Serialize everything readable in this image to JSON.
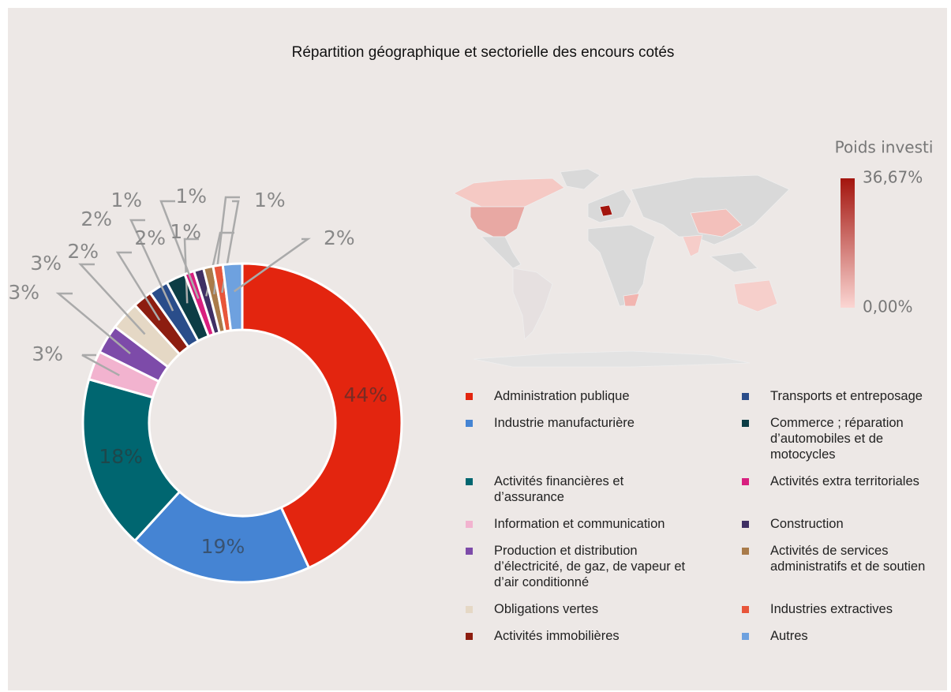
{
  "chart_data": {
    "type": "donut",
    "title": "Répartition géographique et sectorielle des encours cotés",
    "categories": [
      "Administration publique",
      "Industrie manufacturière",
      "Activités financières et d’assurance",
      "Information et communication",
      "Production et distribution d’électricité, de gaz, de vapeur et d’air conditionné",
      "Obligations vertes",
      "Activités immobilières",
      "Transports et entreposage",
      "Commerce ; réparation d’automobiles et de motocycles",
      "Activités extra territoriales",
      "Construction",
      "Activités de services administratifs et de soutien",
      "Industries extractives",
      "Autres"
    ],
    "values": [
      44,
      19,
      18,
      3,
      3,
      3,
      2,
      2,
      2,
      1,
      1,
      1,
      1,
      2
    ],
    "value_labels": [
      "44%",
      "19%",
      "18%",
      "3%",
      "3%",
      "3%",
      "2%",
      "2%",
      "2%",
      "1%",
      "1%",
      "1%",
      "1%",
      "2%"
    ],
    "colors": [
      "#e3250f",
      "#4584d3",
      "#006670",
      "#f2b3cf",
      "#7d4ba9",
      "#e5d8c5",
      "#8d1d10",
      "#2a4d8a",
      "#0c3d45",
      "#d81f7f",
      "#3f2f64",
      "#a97b4a",
      "#e8553a",
      "#6ea1df"
    ],
    "map": {
      "legend_title": "Poids investi",
      "scale_colors": [
        "#fbd6d3",
        "#a3150e"
      ],
      "scale_ticks": [
        {
          "value": 0,
          "label": "0,00%"
        },
        {
          "value": 36.67,
          "label": "36,67%"
        }
      ]
    }
  }
}
